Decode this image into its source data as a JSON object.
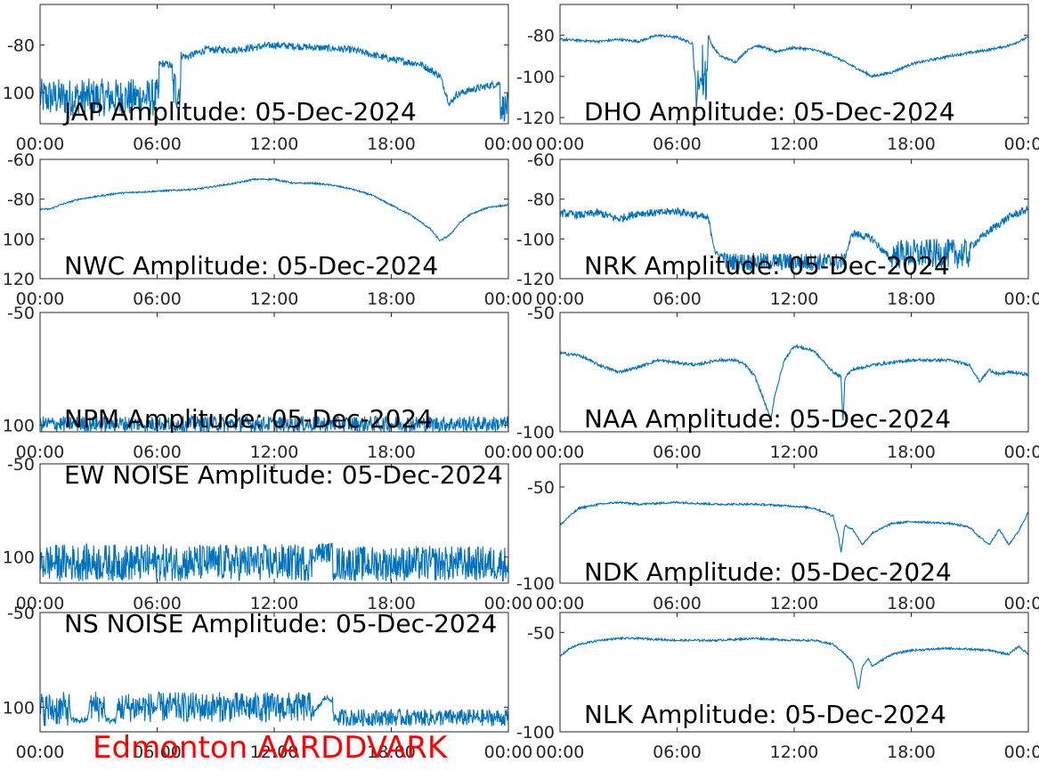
{
  "colors": {
    "line": "#0072BD",
    "axes": "#262626",
    "caption": "#ff0000"
  },
  "caption": "Edmonton AARDDVARK",
  "chart_data": [
    {
      "type": "line",
      "title": "JAP Amplitude: 05-Dec-2024",
      "xlabel": "",
      "ylabel": "",
      "xlim": [
        0,
        24
      ],
      "ylim": [
        -113,
        -63
      ],
      "xticks": [
        "00:00",
        "06:00",
        "12:00",
        "18:00",
        "00:00"
      ],
      "yticks": [
        {
          "v": -80,
          "label": "-80"
        },
        {
          "v": -100,
          "label": "100"
        }
      ],
      "noise": 1.5,
      "series": [
        {
          "x": [
            0,
            0.5,
            2,
            4,
            6,
            6.1,
            6.5,
            7.0,
            7.2,
            7.5,
            8.5,
            10,
            12,
            14,
            16,
            18,
            19.5,
            20.5,
            21.0,
            21.3,
            21.6,
            22,
            23,
            23.6,
            23.8,
            24
          ],
          "y": [
            -100,
            -99,
            -101,
            -100,
            -100,
            -88,
            -88,
            -90,
            -84,
            -85,
            -82,
            -82,
            -80,
            -81,
            -82,
            -86,
            -88,
            -93,
            -105,
            -101,
            -100,
            -99,
            -97,
            -96,
            -108,
            -104
          ],
          "bands": [
            {
              "x0": 0,
              "x1": 6.1,
              "lo": -110,
              "hi": -94
            },
            {
              "x0": 6.8,
              "x1": 7.2,
              "lo": -108,
              "hi": -89
            },
            {
              "x0": 23.6,
              "x1": 24,
              "lo": -112,
              "hi": -100
            }
          ]
        }
      ]
    },
    {
      "type": "line",
      "title": "DHO Amplitude: 05-Dec-2024",
      "xlabel": "",
      "ylabel": "",
      "xlim": [
        0,
        24
      ],
      "ylim": [
        -123,
        -65
      ],
      "xticks": [
        "00:00",
        "06:00",
        "12:00",
        "18:00",
        "00:00"
      ],
      "yticks": [
        {
          "v": -80,
          "label": "-80"
        },
        {
          "v": -100,
          "label": "-100"
        },
        {
          "v": -120,
          "label": "-120"
        }
      ],
      "noise": 0.6,
      "series": [
        {
          "x": [
            0,
            2,
            3,
            4,
            5,
            6,
            6.8,
            7.0,
            7.2,
            7.5,
            7.6,
            7.8,
            8.2,
            9,
            9.5,
            10,
            10.5,
            11,
            12,
            13,
            14,
            15,
            16,
            17,
            18,
            20,
            22,
            23,
            24
          ],
          "y": [
            -82,
            -83,
            -82,
            -83,
            -80,
            -81,
            -84,
            -117,
            -100,
            -115,
            -80,
            -85,
            -90,
            -93,
            -88,
            -85,
            -86,
            -88,
            -86,
            -87,
            -90,
            -95,
            -100,
            -98,
            -94,
            -90,
            -87,
            -85,
            -81
          ],
          "bands": [
            {
              "x0": 6.9,
              "x1": 7.1,
              "lo": -117,
              "hi": -96
            },
            {
              "x0": 7.3,
              "x1": 7.55,
              "lo": -115,
              "hi": -82
            }
          ]
        }
      ]
    },
    {
      "type": "line",
      "title": "NWC Amplitude: 05-Dec-2024",
      "xlabel": "",
      "ylabel": "",
      "xlim": [
        0,
        24
      ],
      "ylim": [
        -120,
        -60
      ],
      "xticks": [
        "00:00",
        "06:00",
        "12:00",
        "18:00",
        "00:00"
      ],
      "yticks": [
        {
          "v": -60,
          "label": "-60"
        },
        {
          "v": -80,
          "label": "-80"
        },
        {
          "v": -100,
          "label": "100"
        },
        {
          "v": -120,
          "label": "120"
        }
      ],
      "noise": 0.4,
      "series": [
        {
          "x": [
            0,
            0.5,
            1,
            2,
            4,
            6,
            8,
            10,
            11,
            12,
            13,
            14,
            15,
            16,
            17,
            18,
            19,
            20,
            20.5,
            21,
            21.5,
            22,
            23,
            24
          ],
          "y": [
            -85,
            -85,
            -83,
            -80,
            -77,
            -76,
            -75,
            -72,
            -70,
            -70,
            -72,
            -72,
            -73,
            -75,
            -78,
            -83,
            -88,
            -95,
            -101,
            -98,
            -92,
            -88,
            -84,
            -83
          ],
          "bands": []
        }
      ]
    },
    {
      "type": "line",
      "title": "NRK Amplitude: 05-Dec-2024",
      "xlabel": "",
      "ylabel": "",
      "xlim": [
        0,
        24
      ],
      "ylim": [
        -120,
        -60
      ],
      "xticks": [
        "00:00",
        "06:00",
        "12:00",
        "18:00",
        "00:00"
      ],
      "yticks": [
        {
          "v": -60,
          "label": "-60"
        },
        {
          "v": -80,
          "label": "-80"
        },
        {
          "v": -100,
          "label": "-100"
        },
        {
          "v": -120,
          "label": "-120"
        }
      ],
      "noise": 2.0,
      "series": [
        {
          "x": [
            0,
            1,
            2,
            3,
            4,
            5,
            6,
            7,
            7.6,
            8,
            9,
            10,
            12,
            14,
            14.5,
            15,
            16,
            17,
            17.5,
            18,
            19,
            20,
            21,
            22,
            23,
            24
          ],
          "y": [
            -87,
            -88,
            -87,
            -90,
            -87,
            -87,
            -86,
            -88,
            -90,
            -108,
            -110,
            -113,
            -112,
            -113,
            -112,
            -97,
            -100,
            -111,
            -112,
            -110,
            -104,
            -102,
            -104,
            -96,
            -89,
            -85
          ],
          "bands": [
            {
              "x0": 8.5,
              "x1": 14.5,
              "lo": -116,
              "hi": -107
            },
            {
              "x0": 17,
              "x1": 21,
              "lo": -115,
              "hi": -100
            }
          ]
        }
      ]
    },
    {
      "type": "line",
      "title": "NPM Amplitude: 05-Dec-2024",
      "xlabel": "",
      "ylabel": "",
      "xlim": [
        0,
        24
      ],
      "ylim": [
        -103,
        -50
      ],
      "xticks": [
        "00:00",
        "06:00",
        "12:00",
        "18:00",
        "00:00"
      ],
      "yticks": [
        {
          "v": -50,
          "label": "-50"
        },
        {
          "v": -100,
          "label": "100"
        }
      ],
      "noise": 1.5,
      "series": [
        {
          "x": [
            0,
            6,
            12,
            18,
            24
          ],
          "y": [
            -100,
            -99,
            -100,
            -100,
            -100
          ],
          "bands": [
            {
              "x0": 0,
              "x1": 24,
              "lo": -103,
              "hi": -96
            }
          ]
        }
      ]
    },
    {
      "type": "line",
      "title": "NAA Amplitude: 05-Dec-2024",
      "xlabel": "",
      "ylabel": "",
      "xlim": [
        0,
        24
      ],
      "ylim": [
        -100,
        -50
      ],
      "xticks": [
        "00:00",
        "06:00",
        "12:00",
        "18:00",
        "00:00"
      ],
      "yticks": [
        {
          "v": -50,
          "label": "-50"
        },
        {
          "v": -100,
          "label": "-100"
        }
      ],
      "noise": 0.6,
      "series": [
        {
          "x": [
            0,
            1,
            2,
            3,
            4,
            5,
            6,
            7,
            8,
            9,
            9.5,
            10,
            10.5,
            10.8,
            11,
            11.5,
            12,
            13,
            14,
            14.4,
            14.5,
            14.6,
            15,
            16,
            18,
            20,
            21,
            21.5,
            22,
            22.5,
            23,
            24
          ],
          "y": [
            -67,
            -68,
            -72,
            -75,
            -73,
            -70,
            -71,
            -72,
            -70,
            -70,
            -72,
            -77,
            -88,
            -95,
            -85,
            -70,
            -64,
            -66,
            -75,
            -77,
            -97,
            -77,
            -74,
            -72,
            -70,
            -70,
            -72,
            -79,
            -74,
            -76,
            -75,
            -76
          ],
          "bands": []
        }
      ]
    },
    {
      "type": "line",
      "title": "EW NOISE Amplitude: 05-Dec-2024",
      "xlabel": "",
      "ylabel": "",
      "xlim": [
        0,
        24
      ],
      "ylim": [
        -114,
        -50
      ],
      "xticks": [
        "00:00",
        "06:00",
        "12:00",
        "18:00",
        "00:00"
      ],
      "yticks": [
        {
          "v": -50,
          "label": "-50"
        },
        {
          "v": -100,
          "label": "100"
        }
      ],
      "noise": 2.0,
      "series": [
        {
          "x": [
            0,
            6,
            12,
            14,
            14.5,
            15,
            18,
            24
          ],
          "y": [
            -104,
            -101,
            -104,
            -104,
            -94,
            -104,
            -105,
            -105
          ],
          "bands": [
            {
              "x0": 0,
              "x1": 14,
              "lo": -113,
              "hi": -93
            },
            {
              "x0": 15,
              "x1": 24,
              "lo": -113,
              "hi": -94
            },
            {
              "x0": 14,
              "x1": 15,
              "lo": -103,
              "hi": -92
            }
          ]
        }
      ]
    },
    {
      "type": "line",
      "title": "NDK Amplitude: 05-Dec-2024",
      "xlabel": "",
      "ylabel": "",
      "xlim": [
        0,
        24
      ],
      "ylim": [
        -100,
        -38
      ],
      "xticks": [
        "00:00",
        "06:00",
        "12:00",
        "18:00",
        "00:00"
      ],
      "yticks": [
        {
          "v": -50,
          "label": "-50"
        },
        {
          "v": -100,
          "label": "-100"
        }
      ],
      "noise": 0.5,
      "series": [
        {
          "x": [
            0,
            0.5,
            1,
            2,
            3,
            4,
            6,
            8,
            10,
            12,
            13,
            14,
            14.3,
            14.4,
            14.6,
            15,
            15.5,
            16,
            17,
            18,
            20,
            21,
            21.5,
            22,
            22.5,
            23,
            23.5,
            24
          ],
          "y": [
            -70,
            -65,
            -61,
            -59,
            -58,
            -59,
            -58,
            -59,
            -59,
            -60,
            -61,
            -65,
            -77,
            -84,
            -70,
            -72,
            -80,
            -74,
            -69,
            -68,
            -69,
            -71,
            -76,
            -80,
            -72,
            -80,
            -73,
            -63
          ],
          "bands": []
        }
      ]
    },
    {
      "type": "line",
      "title": "NS NOISE Amplitude: 05-Dec-2024",
      "xlabel": "",
      "ylabel": "",
      "xlim": [
        0,
        24
      ],
      "ylim": [
        -113,
        -50
      ],
      "xticks": [
        "00:00",
        "06:00",
        "12:00",
        "18:00",
        "00:00"
      ],
      "yticks": [
        {
          "v": -50,
          "label": "-50"
        },
        {
          "v": -100,
          "label": "100"
        }
      ],
      "noise": 1.5,
      "series": [
        {
          "x": [
            0,
            0.4,
            1.5,
            1.6,
            2.4,
            2.6,
            3.2,
            3.4,
            3.9,
            4.0,
            5.0,
            5.3,
            6,
            10,
            13,
            14,
            14.6,
            15.0,
            15.1,
            18,
            24
          ],
          "y": [
            -100,
            -96,
            -98,
            -107,
            -107,
            -96,
            -97,
            -107,
            -107,
            -96,
            -96,
            -101,
            -101,
            -102,
            -103,
            -104,
            -95,
            -96,
            -106,
            -105,
            -106
          ],
          "bands": [
            {
              "x0": 0,
              "x1": 1.5,
              "lo": -110,
              "hi": -92
            },
            {
              "x0": 2.6,
              "x1": 3.3,
              "lo": -108,
              "hi": -91
            },
            {
              "x0": 4.0,
              "x1": 14,
              "lo": -108,
              "hi": -92
            },
            {
              "x0": 15,
              "x1": 24,
              "lo": -110,
              "hi": -101
            }
          ]
        }
      ]
    },
    {
      "type": "line",
      "title": "NLK Amplitude: 05-Dec-2024",
      "xlabel": "",
      "ylabel": "",
      "xlim": [
        0,
        24
      ],
      "ylim": [
        -100,
        -40
      ],
      "xticks": [
        "00:00",
        "06:00",
        "12:00",
        "18:00",
        "00:00"
      ],
      "yticks": [
        {
          "v": -50,
          "label": "-50"
        },
        {
          "v": -100,
          "label": "-100"
        }
      ],
      "noise": 0.5,
      "series": [
        {
          "x": [
            0,
            0.5,
            1,
            2,
            3,
            4,
            6,
            8,
            10,
            12,
            13,
            14,
            14.5,
            15,
            15.3,
            15.5,
            15.8,
            16,
            16.5,
            17,
            18,
            20,
            22,
            23,
            23.5,
            24
          ],
          "y": [
            -62,
            -58,
            -56,
            -54,
            -53,
            -53,
            -54,
            -54,
            -53,
            -54,
            -54,
            -56,
            -60,
            -65,
            -79,
            -67,
            -63,
            -67,
            -64,
            -61,
            -59,
            -58,
            -59,
            -61,
            -57,
            -61
          ],
          "bands": []
        }
      ]
    }
  ]
}
